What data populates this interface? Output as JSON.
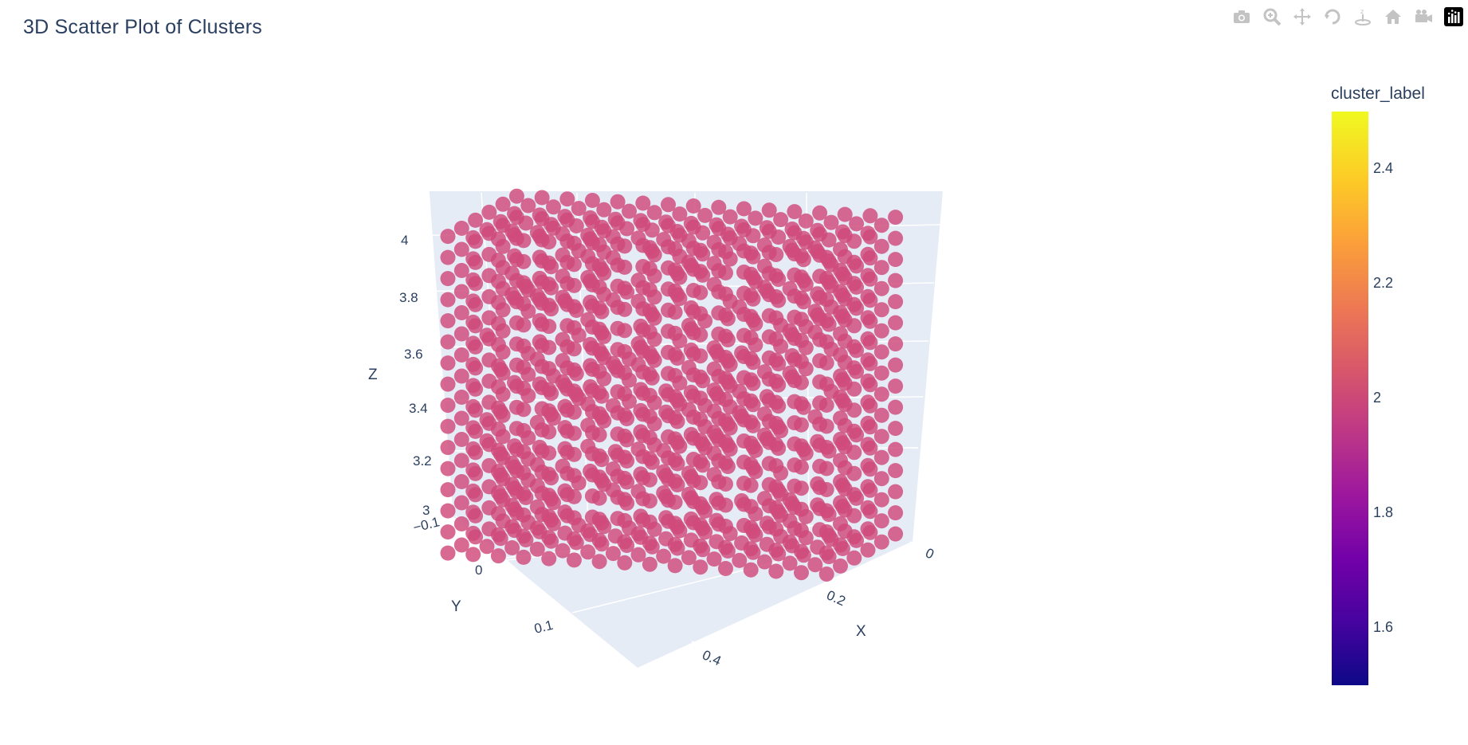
{
  "title": "3D Scatter Plot of Clusters",
  "modebar": [
    {
      "name": "camera-icon",
      "label": "Download plot as a png"
    },
    {
      "name": "zoom-icon",
      "label": "Zoom"
    },
    {
      "name": "pan-icon",
      "label": "Pan"
    },
    {
      "name": "orbit-rotation-icon",
      "label": "Orbital rotation"
    },
    {
      "name": "turntable-rotation-icon",
      "label": "Turntable rotation"
    },
    {
      "name": "home-icon",
      "label": "Reset camera to default"
    },
    {
      "name": "camera-view-icon",
      "label": "Reset camera to last save"
    },
    {
      "name": "plotly-logo-icon",
      "label": "Produced with Plotly"
    }
  ],
  "chart_data": {
    "type": "scatter",
    "subtype": "scatter3d",
    "title": "3D Scatter Plot of Clusters",
    "xlabel": "X",
    "ylabel": "Y",
    "zlabel": "Z",
    "x_ticks": [
      "0",
      "0.2",
      "0.4"
    ],
    "y_ticks": [
      "−0.1",
      "0",
      "0.1"
    ],
    "z_ticks": [
      "3",
      "3.2",
      "3.4",
      "3.6",
      "3.8",
      "4"
    ],
    "xlim": [
      -0.02,
      0.48
    ],
    "ylim": [
      -0.1,
      0.15
    ],
    "zlim": [
      2.98,
      4.1
    ],
    "grid": true,
    "marker_color": "#d0497a",
    "marker_value": 2,
    "colorbar": {
      "title": "cluster_label",
      "ticks": [
        "1.6",
        "1.8",
        "2",
        "2.2",
        "2.4"
      ],
      "range": [
        1.5,
        2.5
      ],
      "colorscale": [
        "#0d0887",
        "#46039f",
        "#7201a8",
        "#9c179e",
        "#bd3786",
        "#d8576b",
        "#ed7953",
        "#fb9f3a",
        "#fdca26",
        "#f0f921"
      ]
    },
    "series": [
      {
        "cluster_label": 2,
        "point_grid": {
          "x_range": [
            0.0,
            0.44
          ],
          "y_range": [
            -0.09,
            0.09
          ],
          "z_range": [
            3.0,
            4.06
          ]
        }
      }
    ]
  },
  "colors": {
    "plot_bg": "#e5ecf6",
    "grid": "#ffffff",
    "text": "#2a3f5f",
    "modebar_icon": "#c3c3c3"
  }
}
